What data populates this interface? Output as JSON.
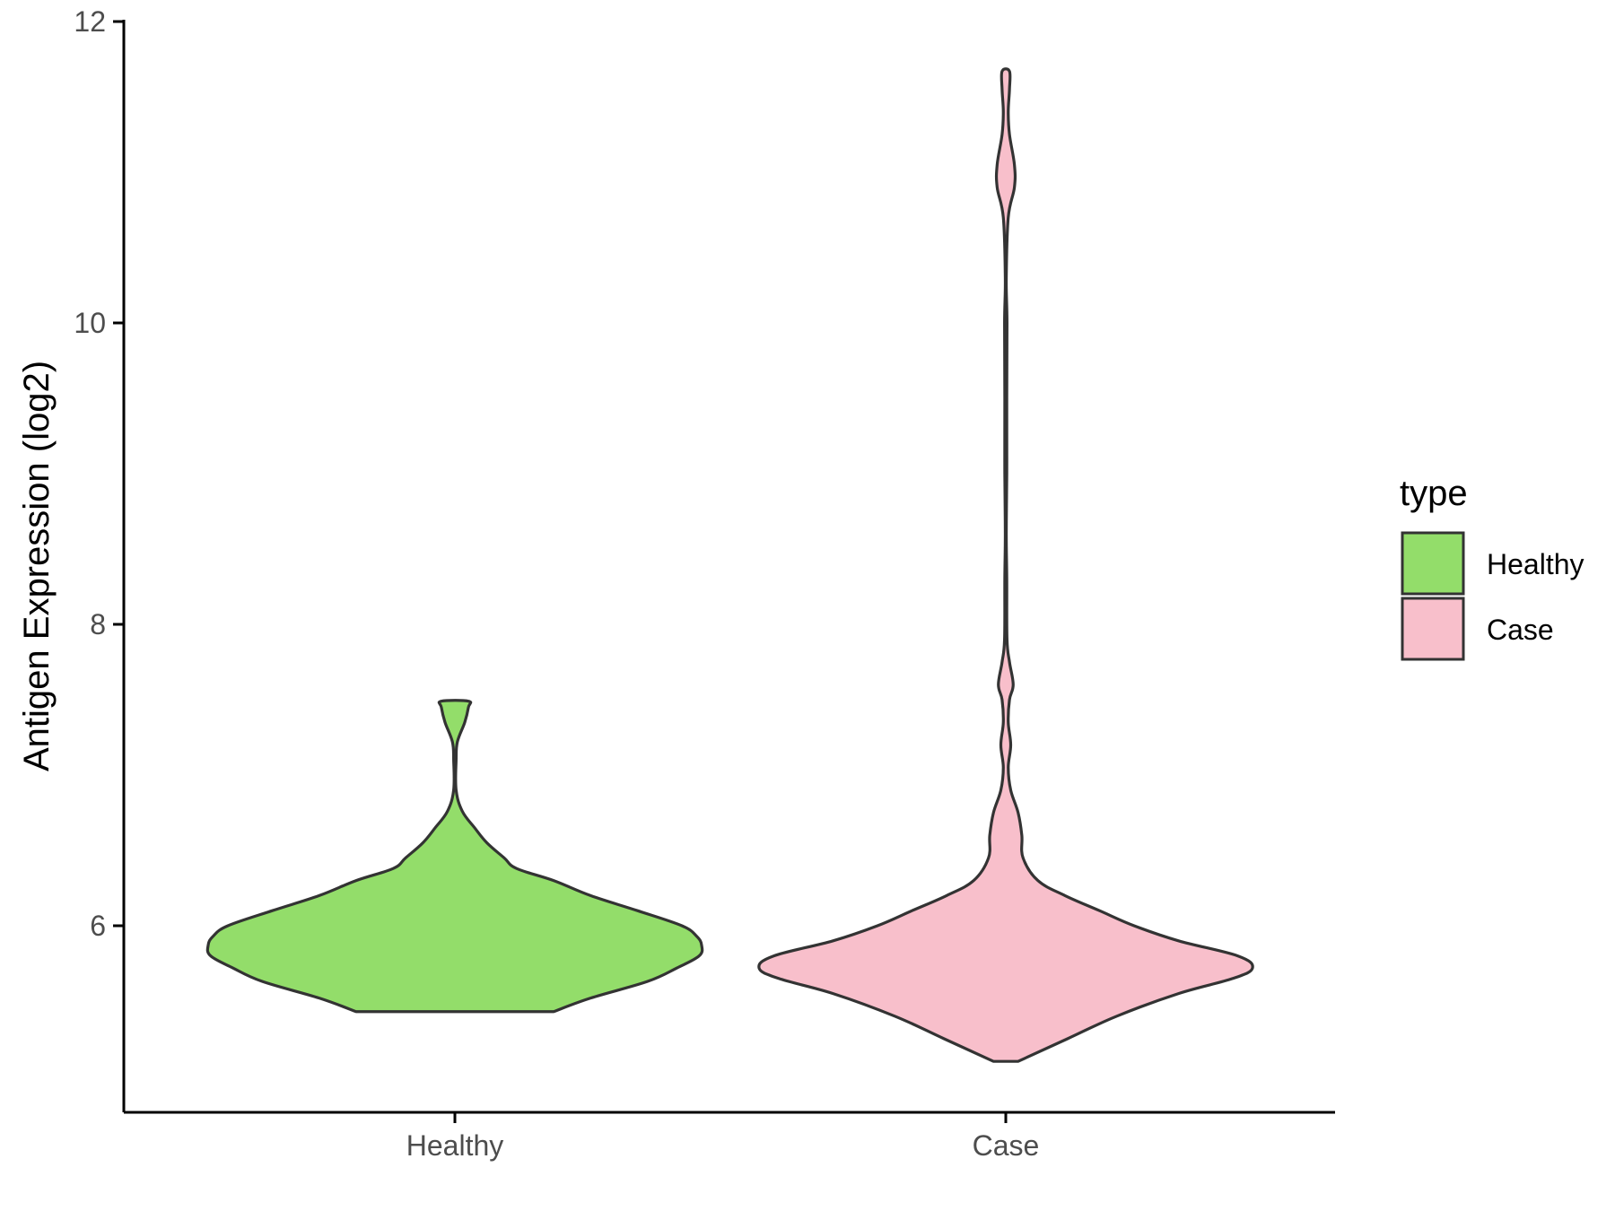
{
  "chart_data": {
    "type": "violin",
    "ylabel": "Antigen Expression (log2)",
    "xlabel": "",
    "categories": [
      "Healthy",
      "Case"
    ],
    "ylim": [
      4.75,
      12
    ],
    "yticks": [
      6,
      8,
      10,
      12
    ],
    "grid": false,
    "legend": {
      "title": "type",
      "position": "right",
      "entries": [
        {
          "label": "Healthy",
          "color": "#93DD6A"
        },
        {
          "label": "Case",
          "color": "#F8BFCB"
        }
      ]
    },
    "series": [
      {
        "category": "Healthy",
        "color": "#93DD6A",
        "y_min": 5.43,
        "y_max": 7.49,
        "density_profile": [
          [
            5.43,
            0.4
          ],
          [
            5.52,
            0.55
          ],
          [
            5.63,
            0.78
          ],
          [
            5.72,
            0.9
          ],
          [
            5.8,
            0.99
          ],
          [
            5.87,
            1.0
          ],
          [
            5.93,
            0.98
          ],
          [
            6.0,
            0.92
          ],
          [
            6.1,
            0.74
          ],
          [
            6.2,
            0.55
          ],
          [
            6.3,
            0.4
          ],
          [
            6.38,
            0.25
          ],
          [
            6.45,
            0.2
          ],
          [
            6.55,
            0.13
          ],
          [
            6.65,
            0.08
          ],
          [
            6.76,
            0.03
          ],
          [
            6.9,
            0.005
          ],
          [
            7.1,
            0.005
          ],
          [
            7.22,
            0.01
          ],
          [
            7.35,
            0.04
          ],
          [
            7.45,
            0.055
          ],
          [
            7.49,
            0.055
          ]
        ]
      },
      {
        "category": "Case",
        "color": "#F8BFCB",
        "y_min": 5.1,
        "y_max": 11.67,
        "density_profile": [
          [
            5.1,
            0.05
          ],
          [
            5.25,
            0.25
          ],
          [
            5.4,
            0.45
          ],
          [
            5.55,
            0.7
          ],
          [
            5.65,
            0.92
          ],
          [
            5.72,
            1.0
          ],
          [
            5.8,
            0.94
          ],
          [
            5.9,
            0.7
          ],
          [
            6.0,
            0.52
          ],
          [
            6.1,
            0.38
          ],
          [
            6.2,
            0.24
          ],
          [
            6.3,
            0.13
          ],
          [
            6.45,
            0.07
          ],
          [
            6.6,
            0.065
          ],
          [
            6.75,
            0.05
          ],
          [
            6.9,
            0.02
          ],
          [
            7.05,
            0.01
          ],
          [
            7.2,
            0.02
          ],
          [
            7.35,
            0.01
          ],
          [
            7.5,
            0.015
          ],
          [
            7.6,
            0.03
          ],
          [
            7.75,
            0.015
          ],
          [
            7.9,
            0.005
          ],
          [
            8.3,
            0.004
          ],
          [
            8.6,
            0.002
          ],
          [
            9.0,
            0.004
          ],
          [
            9.5,
            0.004
          ],
          [
            10.0,
            0.005
          ],
          [
            10.3,
            0.002
          ],
          [
            10.7,
            0.01
          ],
          [
            10.9,
            0.035
          ],
          [
            11.05,
            0.035
          ],
          [
            11.25,
            0.015
          ],
          [
            11.4,
            0.01
          ],
          [
            11.55,
            0.015
          ],
          [
            11.67,
            0.015
          ]
        ]
      }
    ]
  }
}
